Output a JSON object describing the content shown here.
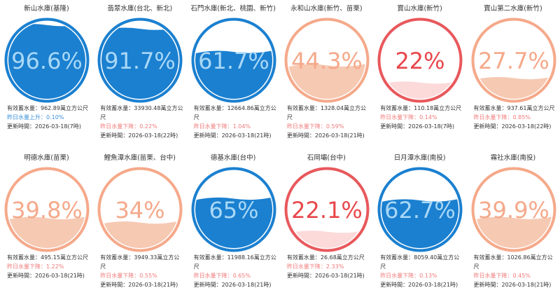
{
  "reservoirs": [
    {
      "name": "新山水庫(基隆)",
      "percent": 96.6,
      "percent_label": "96.6%",
      "capacity": "有效蓄水量：962.89萬立方公尺",
      "change": "昨日水量上升：0.10%",
      "updated": "更新時間：2026-03-18(7時)",
      "color": "#1b80d0",
      "fill": "#1b80d0",
      "text_color": "#a9d8f7",
      "change_color": "#3a8fd8"
    },
    {
      "name": "翡翠水庫(台北、新北)",
      "percent": 91.7,
      "percent_label": "91.7%",
      "capacity": "有效蓄水量：33930.48萬立方公尺",
      "change": "昨日水量下降：0.22%",
      "updated": "更新時間：2026-03-18(22時)",
      "color": "#1b80d0",
      "fill": "#1b80d0",
      "text_color": "#a9d8f7",
      "change_color": "#f07a7a"
    },
    {
      "name": "石門水庫(新北、桃園、新竹)",
      "percent": 61.7,
      "percent_label": "61.7%",
      "capacity": "有效蓄水量：12664.86萬立方公尺",
      "change": "昨日水量下降：1.04%",
      "updated": "更新時間：2026-03-18(21時)",
      "color": "#1b80d0",
      "fill": "#1b80d0",
      "text_color": "#a9d8f7",
      "change_color": "#f07a7a"
    },
    {
      "name": "永和山水庫(新竹、苗栗)",
      "percent": 44.3,
      "percent_label": "44.3%",
      "capacity": "有效蓄水量：1328.04萬立方公尺",
      "change": "昨日水量下降：0.59%",
      "updated": "更新時間：2026-03-18(21時)",
      "color": "#f5a98a",
      "fill": "#f6c9b3",
      "text_color": "#f5a98a",
      "change_color": "#f07a7a"
    },
    {
      "name": "寶山水庫(新竹)",
      "percent": 22,
      "percent_label": "22%",
      "capacity": "有效蓄水量：110.18萬立方公尺",
      "change": "昨日水量下降：0.14%",
      "updated": "更新時間：2026-03-18(7時)",
      "color": "#e8585c",
      "fill": "#fcdada",
      "text_color": "#e8474b",
      "change_color": "#f07a7a"
    },
    {
      "name": "寶山第二水庫(新竹)",
      "percent": 27.7,
      "percent_label": "27.7%",
      "capacity": "有效蓄水量：937.61萬立方公尺",
      "change": "昨日水量下降：0.85%",
      "updated": "更新時間：2026-03-18(22時)",
      "color": "#f5a98a",
      "fill": "#f6c9b3",
      "text_color": "#f5a98a",
      "change_color": "#f07a7a"
    },
    {
      "name": "明德水庫(苗栗)",
      "percent": 39.8,
      "percent_label": "39.8%",
      "capacity": "有效蓄水量：495.15萬立方公尺",
      "change": "昨日水量下降：1.22%",
      "updated": "更新時間：2026-03-18(21時)",
      "color": "#f5a98a",
      "fill": "#f6c9b3",
      "text_color": "#f5a98a",
      "change_color": "#f07a7a"
    },
    {
      "name": "鯉魚潭水庫(苗栗、台中)",
      "percent": 34,
      "percent_label": "34%",
      "capacity": "有效蓄水量：3949.33萬立方公尺",
      "change": "昨日水量下降：0.55%",
      "updated": "更新時間：2026-03-18(21時)",
      "color": "#f5a98a",
      "fill": "#f6c9b3",
      "text_color": "#f5a98a",
      "change_color": "#f07a7a"
    },
    {
      "name": "德基水庫(台中)",
      "percent": 65,
      "percent_label": "65%",
      "capacity": "有效蓄水量：11988.16萬立方公尺",
      "change": "昨日水量下降：0.65%",
      "updated": "更新時間：2026-03-18(21時)",
      "color": "#1b80d0",
      "fill": "#1b80d0",
      "text_color": "#a9d8f7",
      "change_color": "#f07a7a"
    },
    {
      "name": "石岡壩(台中)",
      "percent": 22.1,
      "percent_label": "22.1%",
      "capacity": "有效蓄水量：26.68萬立方公尺",
      "change": "昨日水量下降：2.33%",
      "updated": "更新時間：2026-03-18(21時)",
      "color": "#e8585c",
      "fill": "#fcdada",
      "text_color": "#e8474b",
      "change_color": "#f07a7a"
    },
    {
      "name": "日月潭水庫(南投)",
      "percent": 62.7,
      "percent_label": "62.7%",
      "capacity": "有效蓄水量：8059.40萬立方公尺",
      "change": "昨日水量下降：0.13%",
      "updated": "更新時間：2026-03-18(21時)",
      "color": "#1b80d0",
      "fill": "#1b80d0",
      "text_color": "#a9d8f7",
      "change_color": "#f07a7a"
    },
    {
      "name": "霧社水庫(南投)",
      "percent": 39.9,
      "percent_label": "39.9%",
      "capacity": "有效蓄水量：1026.86萬立方公尺",
      "change": "昨日水量下降：0.45%",
      "updated": "更新時間：2026-03-18(21時)",
      "color": "#f5a98a",
      "fill": "#f6c9b3",
      "text_color": "#f5a98a",
      "change_color": "#f07a7a"
    }
  ]
}
